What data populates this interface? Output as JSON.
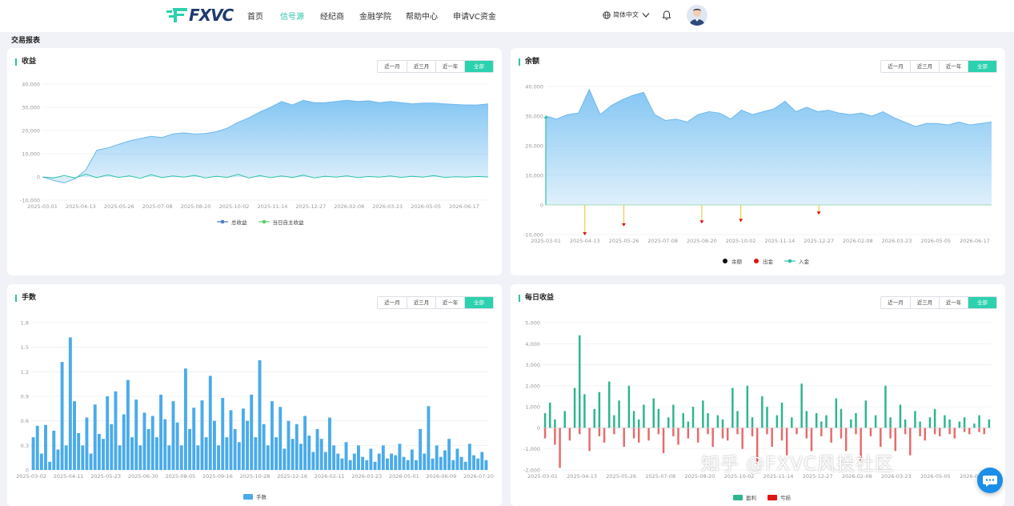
{
  "colors": {
    "accent": "#2cc3a8",
    "area": "#7ec3f2",
    "bar": "#4aabea",
    "profit": "#2cb58f",
    "loss": "#e86a6a"
  },
  "header": {
    "logo_text": "FXVC",
    "nav": [
      "首页",
      "信号源",
      "经纪商",
      "金融学院",
      "帮助中心",
      "申请VC资金"
    ],
    "active_nav": "信号源",
    "language": "简体中文",
    "icons": [
      "globe-icon",
      "chevron-down-icon",
      "bell-icon",
      "avatar"
    ]
  },
  "page": {
    "section_title": "交易报表"
  },
  "range_options": [
    "近一月",
    "近三月",
    "近一年",
    "全部"
  ],
  "range_selected": "全部",
  "watermark": "知乎 @FXVC风投社区",
  "charts": {
    "profit": {
      "title": "收益",
      "legend": [
        "总收益",
        "当日自主收益"
      ]
    },
    "balance": {
      "title": "余额",
      "legend": [
        "余额",
        "出金",
        "入金"
      ]
    },
    "lots": {
      "title": "手数",
      "legend": [
        "手数"
      ]
    },
    "daily": {
      "title": "每日收益",
      "legend": [
        "盈利",
        "亏损"
      ]
    }
  },
  "chart_data": [
    {
      "type": "area",
      "id": "profit",
      "title": "收益",
      "yticks": [
        -10000,
        0,
        10000,
        20000,
        30000,
        40000
      ],
      "ytick_labels": [
        "-10,000",
        "0",
        "10,000",
        "20,000",
        "30,000",
        "40,000"
      ],
      "ylim": [
        -10000,
        40000
      ],
      "xticks": [
        "2025-03-01",
        "2025-04-13",
        "2025-05-26",
        "2025-07-08",
        "2025-08-20",
        "2025-10-02",
        "2025-11-14",
        "2025-12-27",
        "2026-02-08",
        "2026-03-23",
        "2026-05-05",
        "2026-06-17"
      ],
      "series": [
        {
          "name": "总收益",
          "values": [
            0,
            -1500,
            -2500,
            -800,
            3000,
            11500,
            12500,
            14000,
            15500,
            16500,
            17500,
            17000,
            18500,
            19000,
            18500,
            18700,
            19500,
            21000,
            23500,
            25500,
            28000,
            30000,
            32500,
            31000,
            33000,
            32000,
            32000,
            32500,
            33000,
            32500,
            32800,
            32000,
            32500,
            32000,
            31500,
            31800,
            31800,
            31500,
            31200,
            31000,
            31000,
            31500
          ]
        },
        {
          "name": "当日自主收益",
          "values": [
            0,
            -500,
            600,
            -400,
            1200,
            -300,
            900,
            -200,
            500,
            -600,
            1000,
            -300,
            400,
            -100,
            700,
            -400,
            300,
            -200,
            1100,
            -500,
            600,
            -300,
            400,
            -200,
            800,
            -400,
            300,
            -100,
            500,
            -300,
            200,
            -100,
            400,
            -200,
            300,
            -100,
            600,
            -200,
            100,
            -100,
            200,
            0
          ]
        }
      ]
    },
    {
      "type": "area",
      "id": "balance",
      "title": "余额",
      "yticks": [
        -10000,
        0,
        10000,
        20000,
        30000,
        40000
      ],
      "ytick_labels": [
        "-10,000",
        "0",
        "10,000",
        "20,000",
        "30,000",
        "40,000"
      ],
      "ylim": [
        -10000,
        40000
      ],
      "xticks": [
        "2025-03-01",
        "2025-04-13",
        "2025-05-26",
        "2025-07-08",
        "2025-08-20",
        "2025-10-02",
        "2025-11-14",
        "2025-12-27",
        "2026-02-08",
        "2026-03-23",
        "2026-05-05",
        "2026-06-17"
      ],
      "series": [
        {
          "name": "余额",
          "values": [
            30000,
            29000,
            30500,
            31000,
            39000,
            30500,
            33500,
            35500,
            37000,
            38000,
            30500,
            28500,
            29000,
            28000,
            30500,
            31500,
            31000,
            29000,
            32000,
            30500,
            31500,
            32500,
            35000,
            31500,
            33000,
            31500,
            32000,
            31000,
            30500,
            31000,
            30000,
            31500,
            29500,
            28000,
            26500,
            27500,
            27500,
            27000,
            28000,
            27000,
            27500,
            28000
          ]
        },
        {
          "name": "出金",
          "values": [
            {
              "x": "2025-04-13",
              "y": -10000
            },
            {
              "x": "2025-05-26",
              "y": -7000
            },
            {
              "x": "2025-08-20",
              "y": -6000
            },
            {
              "x": "2025-10-02",
              "y": -5500
            },
            {
              "x": "2025-12-27",
              "y": -3000
            }
          ]
        },
        {
          "name": "入金",
          "values": [
            {
              "x": "2025-03-01",
              "y": 30000
            }
          ]
        }
      ]
    },
    {
      "type": "bar",
      "id": "lots",
      "title": "手数",
      "yticks": [
        0,
        0.3,
        0.6,
        0.9,
        1.2,
        1.5,
        1.8
      ],
      "ytick_labels": [
        "0",
        "0.3",
        "0.6",
        "0.9",
        "1.2",
        "1.5",
        "1.8"
      ],
      "ylim": [
        0,
        1.8
      ],
      "xticks": [
        "2025-03-02",
        "2025-04-11",
        "2025-05-23",
        "2025-06-30",
        "2025-08-05",
        "2025-09-16",
        "2025-10-28",
        "2025-12-16",
        "2026-02-11",
        "2026-03-23",
        "2026-05-01",
        "2026-06-09",
        "2026-07-20"
      ],
      "series": [
        {
          "name": "手数",
          "values": [
            0.4,
            0.54,
            0.2,
            0.55,
            0.1,
            0.48,
            0.25,
            1.32,
            0.3,
            1.62,
            0.84,
            0.45,
            0.3,
            0.64,
            0.2,
            0.8,
            0.44,
            0.38,
            0.9,
            0.56,
            0.96,
            0.3,
            0.68,
            1.1,
            0.4,
            0.86,
            0.3,
            0.7,
            0.5,
            0.66,
            0.4,
            0.92,
            0.62,
            0.3,
            0.84,
            0.58,
            0.3,
            1.24,
            0.5,
            0.76,
            0.3,
            0.85,
            0.4,
            1.15,
            0.6,
            0.3,
            0.88,
            0.4,
            0.73,
            0.5,
            0.34,
            0.75,
            0.6,
            0.92,
            0.4,
            1.34,
            0.56,
            0.3,
            0.84,
            0.4,
            0.77,
            0.26,
            0.6,
            0.38,
            0.56,
            0.32,
            0.66,
            0.42,
            0.22,
            0.5,
            0.38,
            0.22,
            0.64,
            0.3,
            0.2,
            0.14,
            0.34,
            0.12,
            0.2,
            0.3,
            0.16,
            0.12,
            0.26,
            0.1,
            0.2,
            0.3,
            0.14,
            0.2,
            0.18,
            0.32,
            0.16,
            0.12,
            0.25,
            0.12,
            0.5,
            0.2,
            0.78,
            0.14,
            0.3,
            0.16,
            0.24,
            0.38,
            0.12,
            0.26,
            0.16,
            0.1,
            0.32,
            0.18,
            0.14,
            0.22,
            0.12
          ]
        }
      ]
    },
    {
      "type": "bar",
      "id": "daily",
      "title": "每日收益",
      "yticks": [
        -2000,
        -1000,
        0,
        1000,
        2000,
        3000,
        4000,
        5000
      ],
      "ytick_labels": [
        "-2,000",
        "-1,000",
        "0",
        "1,000",
        "2,000",
        "3,000",
        "4,000",
        "5,000"
      ],
      "ylim": [
        -2000,
        5000
      ],
      "xticks": [
        "2025-03-01",
        "2025-04-13",
        "2025-05-26",
        "2025-07-08",
        "2025-08-20",
        "2025-10-02",
        "2025-11-14",
        "2025-12-27",
        "2026-02-08",
        "2026-03-23",
        "2026-05-05",
        "2026-06-17"
      ],
      "series": [
        {
          "name": "盈利",
          "values": [
            700,
            1200,
            400,
            0,
            800,
            0,
            1900,
            4400,
            1600,
            0,
            900,
            1700,
            0,
            2200,
            600,
            1300,
            0,
            2000,
            800,
            400,
            1100,
            0,
            1400,
            900,
            0,
            500,
            1100,
            0,
            700,
            300,
            1000,
            0,
            1300,
            700,
            0,
            600,
            400,
            0,
            1900,
            800,
            0,
            2000,
            500,
            0,
            1500,
            1000,
            0,
            600,
            1200,
            0,
            500,
            0,
            2100,
            800,
            0,
            700,
            300,
            600,
            0,
            1400,
            900,
            0,
            400,
            700,
            0,
            1300,
            0,
            600,
            0,
            2000,
            500,
            0,
            1100,
            400,
            0,
            800,
            300,
            0,
            500,
            900,
            0,
            600,
            400,
            0,
            300,
            500,
            0,
            200,
            600,
            0,
            400
          ]
        },
        {
          "name": "亏损",
          "values": [
            -500,
            0,
            -800,
            -1900,
            0,
            -600,
            0,
            -300,
            0,
            -1100,
            0,
            -400,
            -700,
            0,
            -300,
            0,
            -900,
            0,
            -500,
            -700,
            0,
            -600,
            0,
            -300,
            -1200,
            0,
            -400,
            -800,
            0,
            -500,
            0,
            -700,
            0,
            -300,
            -900,
            0,
            -500,
            -600,
            0,
            -300,
            -1000,
            0,
            -400,
            -1700,
            0,
            -300,
            -900,
            0,
            -600,
            -1300,
            0,
            -300,
            0,
            -500,
            -1100,
            0,
            -400,
            0,
            -700,
            0,
            -500,
            -1100,
            0,
            -300,
            -1600,
            0,
            -400,
            0,
            -900,
            0,
            -500,
            -1100,
            0,
            -300,
            -1300,
            0,
            -400,
            -600,
            0,
            -300,
            -400,
            0,
            -300,
            -500,
            0,
            -200,
            -300,
            0,
            -200,
            -300,
            0
          ]
        }
      ]
    }
  ]
}
